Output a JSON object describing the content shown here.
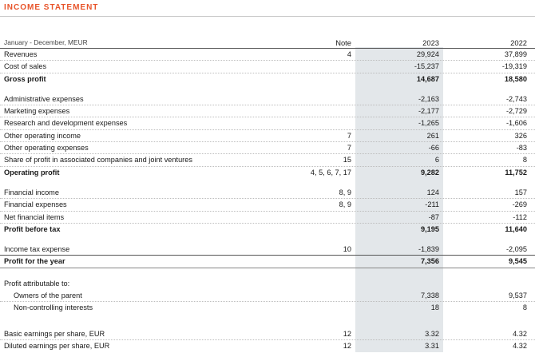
{
  "title": "INCOME STATEMENT",
  "header": {
    "period": "January - December, MEUR",
    "note": "Note",
    "year1": "2023",
    "year2": "2022"
  },
  "rows": [
    {
      "label": "Revenues",
      "note": "4",
      "y1": "29,924",
      "y2": "37,899"
    },
    {
      "label": "Cost of sales",
      "note": "",
      "y1": "-15,237",
      "y2": "-19,319"
    },
    {
      "label": "Gross profit",
      "note": "",
      "y1": "14,687",
      "y2": "18,580"
    },
    {
      "label": "Administrative expenses",
      "note": "",
      "y1": "-2,163",
      "y2": "-2,743"
    },
    {
      "label": "Marketing expenses",
      "note": "",
      "y1": "-2,177",
      "y2": "-2,729"
    },
    {
      "label": "Research and development expenses",
      "note": "",
      "y1": "-1,265",
      "y2": "-1,606"
    },
    {
      "label": "Other operating income",
      "note": "7",
      "y1": "261",
      "y2": "326"
    },
    {
      "label": "Other operating expenses",
      "note": "7",
      "y1": "-66",
      "y2": "-83"
    },
    {
      "label": "Share of profit in associated companies and joint ventures",
      "note": "15",
      "y1": "6",
      "y2": "8"
    },
    {
      "label": "Operating profit",
      "note": "4, 5, 6, 7, 17",
      "y1": "9,282",
      "y2": "11,752"
    },
    {
      "label": "Financial income",
      "note": "8, 9",
      "y1": "124",
      "y2": "157"
    },
    {
      "label": "Financial expenses",
      "note": "8, 9",
      "y1": "-211",
      "y2": "-269"
    },
    {
      "label": "Net financial items",
      "note": "",
      "y1": "-87",
      "y2": "-112"
    },
    {
      "label": "Profit before tax",
      "note": "",
      "y1": "9,195",
      "y2": "11,640"
    },
    {
      "label": "Income tax expense",
      "note": "10",
      "y1": "-1,839",
      "y2": "-2,095"
    },
    {
      "label": "Profit for the year",
      "note": "",
      "y1": "7,356",
      "y2": "9,545"
    },
    {
      "label": "Profit attributable to:",
      "note": "",
      "y1": "",
      "y2": ""
    },
    {
      "label": "Owners of the parent",
      "note": "",
      "y1": "7,338",
      "y2": "9,537"
    },
    {
      "label": "Non-controlling interests",
      "note": "",
      "y1": "18",
      "y2": "8"
    },
    {
      "label": "Basic earnings per share, EUR",
      "note": "12",
      "y1": "3.32",
      "y2": "4.32"
    },
    {
      "label": "Diluted earnings per share, EUR",
      "note": "12",
      "y1": "3.31",
      "y2": "4.32"
    }
  ]
}
